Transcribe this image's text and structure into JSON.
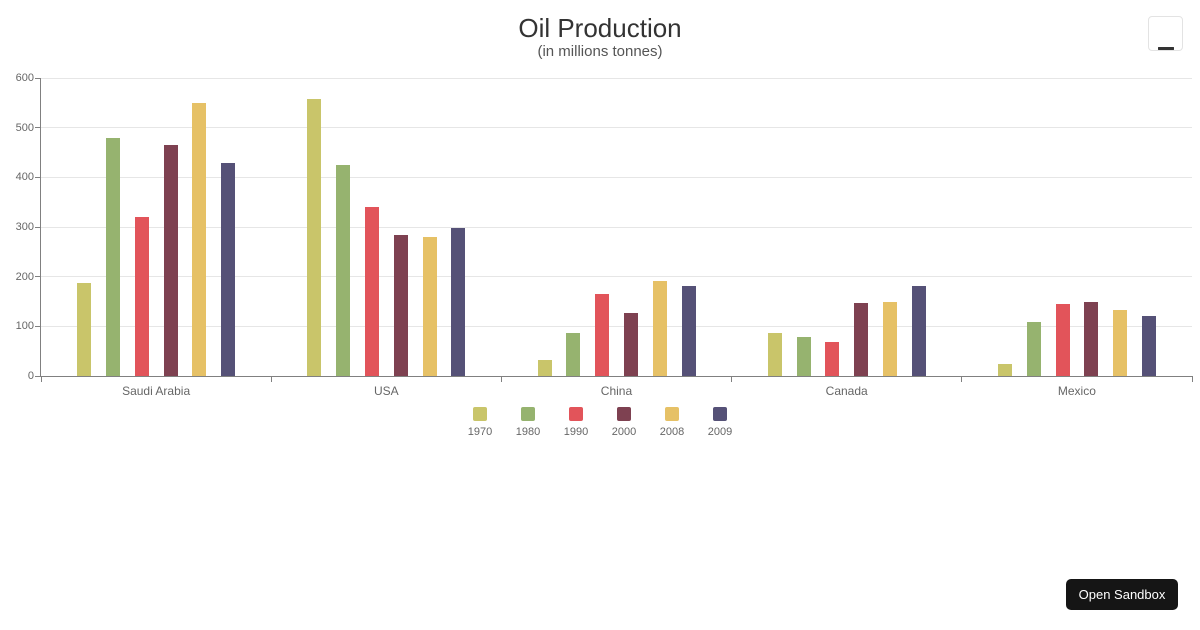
{
  "chart": {
    "background": "#ffffff",
    "axis_line_color": "#808080",
    "grid_color": "#e6e6e6",
    "label_color": "#666666",
    "title_color": "#333333"
  },
  "chart_data": {
    "type": "bar",
    "title": "Oil Production",
    "subtitle": "(in millions tonnes)",
    "categories": [
      "Saudi Arabia",
      "USA",
      "China",
      "Canada",
      "Mexico"
    ],
    "series": [
      {
        "name": "1970",
        "color": "#c9c56a",
        "values": [
          187,
          558,
          32,
          87,
          24
        ]
      },
      {
        "name": "1980",
        "color": "#96b36f",
        "values": [
          480,
          424,
          86,
          79,
          109
        ]
      },
      {
        "name": "1990",
        "color": "#e2545a",
        "values": [
          320,
          340,
          165,
          68,
          145
        ]
      },
      {
        "name": "2000",
        "color": "#7e4151",
        "values": [
          465,
          283,
          127,
          147,
          149
        ]
      },
      {
        "name": "2008",
        "color": "#e6c166",
        "values": [
          550,
          280,
          192,
          149,
          133
        ]
      },
      {
        "name": "2009",
        "color": "#555177",
        "values": [
          429,
          298,
          181,
          181,
          121
        ]
      }
    ],
    "ylim": [
      0,
      600
    ],
    "y_ticks": [
      0,
      100,
      200,
      300,
      400,
      500,
      600
    ],
    "grid": true,
    "legend_position": "bottom-center"
  },
  "menu_button": {
    "icon": "hamburger-icon"
  },
  "sandbox_button": {
    "label": "Open Sandbox"
  }
}
